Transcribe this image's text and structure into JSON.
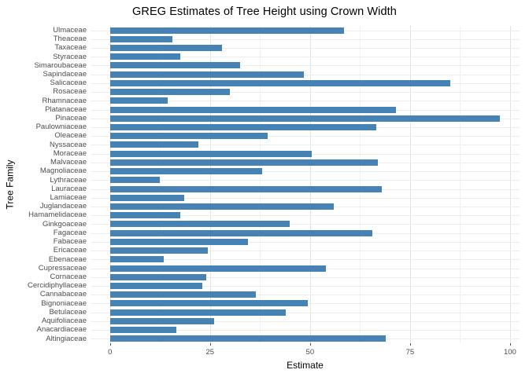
{
  "chart": {
    "title": "GREG Estimates of Tree Height using Crown Width",
    "xlabel": "Estimate",
    "ylabel": "Tree Family"
  },
  "chart_data": {
    "type": "bar",
    "orientation": "horizontal",
    "title": "GREG Estimates of Tree Height using Crown Width",
    "xlabel": "Estimate",
    "ylabel": "Tree Family",
    "xlim": [
      0,
      100
    ],
    "x_ticks": [
      0,
      25,
      50,
      75,
      100
    ],
    "x_minor_ticks": [
      12.5,
      37.5,
      62.5,
      87.5
    ],
    "grid": true,
    "legend": false,
    "bar_color": "#4682B4",
    "categories": [
      "Ulmaceae",
      "Theaceae",
      "Taxaceae",
      "Styraceae",
      "Simaroubaceae",
      "Sapindaceae",
      "Salicaceae",
      "Rosaceae",
      "Rhamnaceae",
      "Platanaceae",
      "Pinaceae",
      "Paulowniaceae",
      "Oleaceae",
      "Nyssaceae",
      "Moraceae",
      "Malvaceae",
      "Magnoliaceae",
      "Lythraceae",
      "Lauraceae",
      "Lamiaceae",
      "Juglandaceae",
      "Hamamelidaceae",
      "Ginkgoaceae",
      "Fagaceae",
      "Fabaceae",
      "Ericaceae",
      "Ebenaceae",
      "Cupressaceae",
      "Cornaceae",
      "Cercidiphyllaceae",
      "Cannabaceae",
      "Bignoniaceae",
      "Betulaceae",
      "Aquifoliaceae",
      "Anacardiaceae",
      "Altingiaceae"
    ],
    "values": [
      58.5,
      15.5,
      28,
      17.5,
      32.5,
      48.5,
      85,
      30,
      14.5,
      71.5,
      97.5,
      66.5,
      39.5,
      22,
      50.5,
      67,
      38,
      12.5,
      68,
      18.5,
      56,
      17.5,
      45,
      65.5,
      34.5,
      24.5,
      13.5,
      54,
      24,
      23,
      36.5,
      49.5,
      44,
      26,
      16.5,
      69
    ]
  }
}
